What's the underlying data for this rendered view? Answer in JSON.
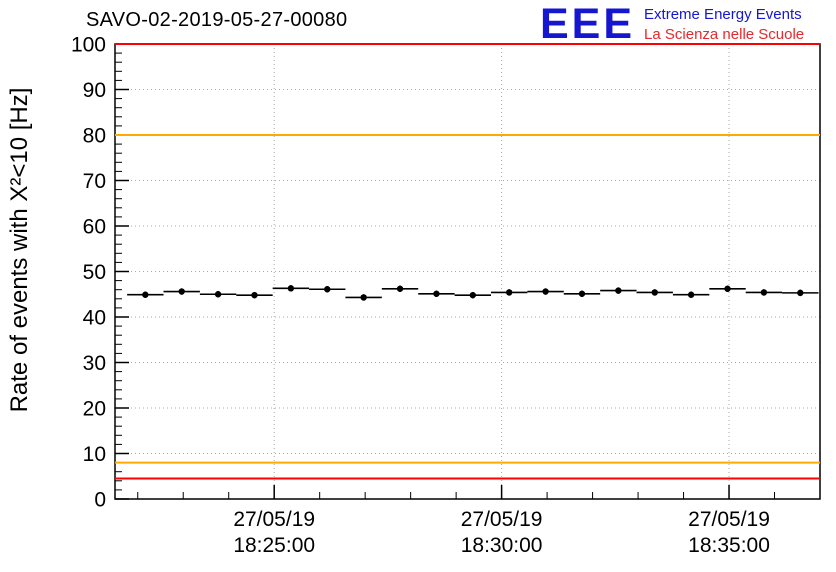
{
  "header": {
    "title": "SAVO-02-2019-05-27-00080",
    "logo": {
      "text": "EEE",
      "line1": "Extreme Energy Events",
      "line2": "La Scienza nelle Scuole"
    }
  },
  "colors": {
    "logo_blue": "#1616d0",
    "logo_red": "#e8282c",
    "frame": "#000000",
    "grid": "#a8a8a8",
    "alarm_red": "#ff0000",
    "warning_orange": "#ffaa00",
    "marker_black": "#000000"
  },
  "chart_data": {
    "type": "scatter",
    "title": "SAVO-02-2019-05-27-00080",
    "ylabel": "Rate of events with X²<10 [Hz]",
    "xlabel": "",
    "ylim": [
      0,
      100
    ],
    "xlim": [
      "18:21:30",
      "18:37:00"
    ],
    "grid": true,
    "legend": "none",
    "y_ticks": [
      0,
      10,
      20,
      30,
      40,
      50,
      60,
      70,
      80,
      90,
      100
    ],
    "y_minor_step": 2,
    "x_minor_step_s": 60,
    "x_ticks": [
      {
        "time": "18:25:00",
        "label_date": "27/05/19",
        "label_time": "18:25:00"
      },
      {
        "time": "18:30:00",
        "label_date": "27/05/19",
        "label_time": "18:30:00"
      },
      {
        "time": "18:35:00",
        "label_date": "27/05/19",
        "label_time": "18:35:00"
      }
    ],
    "reference_lines": [
      {
        "value": 100,
        "color": "#ff0000"
      },
      {
        "value": 80,
        "color": "#ffaa00"
      },
      {
        "value": 8,
        "color": "#ffaa00"
      },
      {
        "value": 4.5,
        "color": "#ff0000"
      }
    ],
    "series": [
      {
        "name": "rate-of-events",
        "marker_color": "#000000",
        "bin_halfwidth_s": 24,
        "y_error": 0.7,
        "points": [
          {
            "t": "18:22:10",
            "y": 44.9
          },
          {
            "t": "18:22:58",
            "y": 45.6
          },
          {
            "t": "18:23:46",
            "y": 45.0
          },
          {
            "t": "18:24:34",
            "y": 44.8
          },
          {
            "t": "18:25:22",
            "y": 46.3
          },
          {
            "t": "18:26:10",
            "y": 46.1
          },
          {
            "t": "18:26:58",
            "y": 44.3
          },
          {
            "t": "18:27:46",
            "y": 46.2
          },
          {
            "t": "18:28:34",
            "y": 45.1
          },
          {
            "t": "18:29:22",
            "y": 44.8
          },
          {
            "t": "18:30:10",
            "y": 45.4
          },
          {
            "t": "18:30:58",
            "y": 45.6
          },
          {
            "t": "18:31:46",
            "y": 45.1
          },
          {
            "t": "18:32:34",
            "y": 45.8
          },
          {
            "t": "18:33:22",
            "y": 45.4
          },
          {
            "t": "18:34:10",
            "y": 44.9
          },
          {
            "t": "18:34:58",
            "y": 46.2
          },
          {
            "t": "18:35:46",
            "y": 45.4
          },
          {
            "t": "18:36:34",
            "y": 45.3
          }
        ]
      }
    ]
  }
}
